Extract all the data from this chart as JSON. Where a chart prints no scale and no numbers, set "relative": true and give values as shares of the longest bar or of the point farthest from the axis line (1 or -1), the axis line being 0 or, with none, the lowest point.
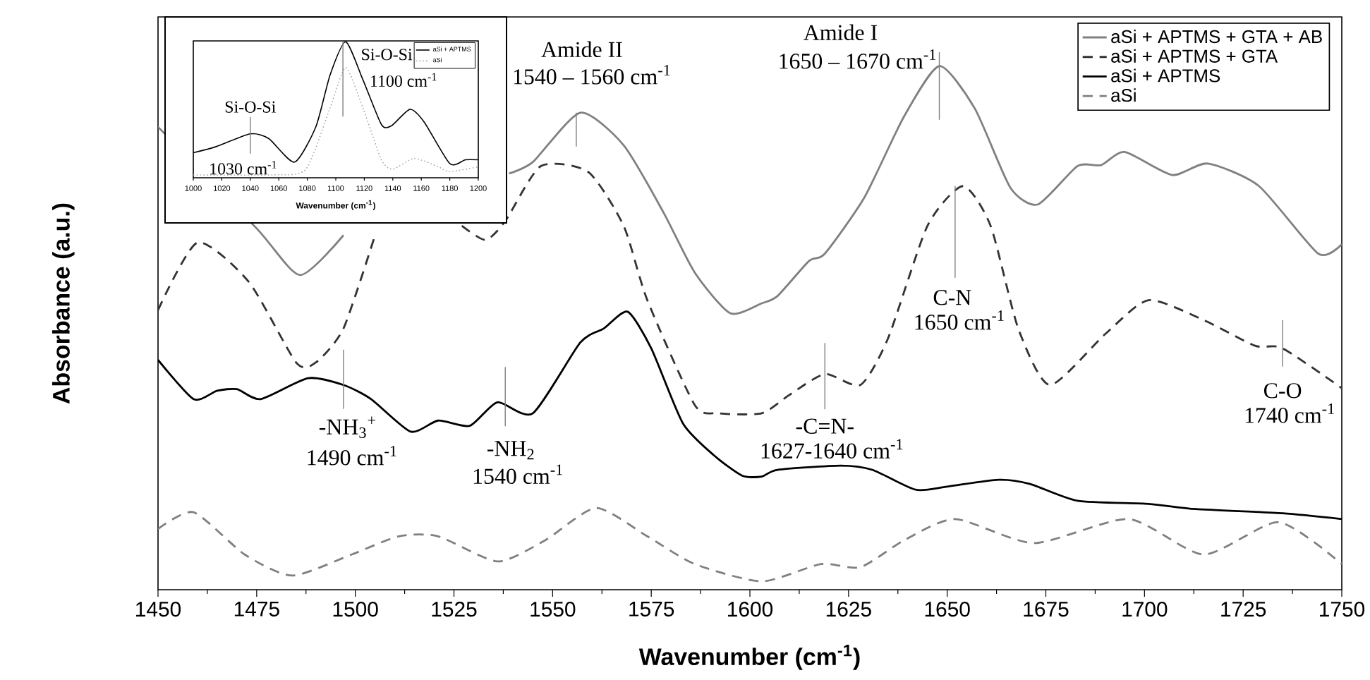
{
  "chart_data": [
    {
      "type": "line",
      "xlabel": "Wavenumber (cm$^{-1}$)",
      "ylabel": "Absorbance (a.u.)",
      "relative": true,
      "xlim": [
        1450,
        1750
      ],
      "xticks": [
        1450,
        1475,
        1500,
        1525,
        1550,
        1575,
        1600,
        1625,
        1650,
        1675,
        1700,
        1725,
        1750
      ],
      "legend": "top right",
      "series": [
        {
          "name": "aSi + APTMS + GTA + AB",
          "color": "#808080",
          "line_style": "solid",
          "x": [
            1450,
            1475,
            1486,
            1497,
            1520,
            1539,
            1545,
            1557,
            1568,
            1578,
            1586,
            1595,
            1603,
            1607,
            1615,
            1619,
            1629,
            1639,
            1648,
            1657,
            1666,
            1673,
            1683,
            1689,
            1695,
            1707,
            1716,
            1729,
            1744,
            1750
          ],
          "values": [
            0.884,
            0.69,
            0.601,
            0.677,
            null,
            0.795,
            0.817,
            0.911,
            0.849,
            0.722,
            0.606,
            0.528,
            0.547,
            0.561,
            0.628,
            0.642,
            0.749,
            0.903,
            1.0,
            0.919,
            0.768,
            0.736,
            0.809,
            0.811,
            0.836,
            0.792,
            0.814,
            0.771,
            0.642,
            0.66
          ]
        },
        {
          "name": "aSi + APTMS + GTA",
          "color": "#333333",
          "line_style": "dashed",
          "x": [
            1450,
            1460,
            1473,
            1485,
            1490,
            1497,
            1505,
            1516,
            1527,
            1533,
            1538,
            1547,
            1559,
            1568,
            1574,
            1586,
            1592,
            1603,
            1610,
            1619,
            1628,
            1635,
            1645,
            1654,
            1661,
            1668,
            1676,
            1690,
            1701,
            1715,
            1728,
            1735,
            1750
          ],
          "values": [
            0.534,
            0.663,
            0.588,
            0.434,
            0.434,
            0.499,
            0.677,
            null,
            0.695,
            0.668,
            0.704,
            0.809,
            0.798,
            0.695,
            0.553,
            0.353,
            0.337,
            0.337,
            0.372,
            0.412,
            0.391,
            0.48,
            0.695,
            0.771,
            0.695,
            0.499,
            0.391,
            0.488,
            0.553,
            0.515,
            0.466,
            0.461,
            0.385
          ]
        },
        {
          "name": "aSi + APTMS",
          "color": "#000000",
          "line_style": "solid",
          "x": [
            1450,
            1459,
            1465,
            1470,
            1476,
            1488,
            1497,
            1504,
            1514,
            1521,
            1529,
            1536,
            1545,
            1557,
            1563,
            1569,
            1575,
            1583,
            1591,
            1598,
            1603,
            1607,
            1623,
            1631,
            1642,
            1650,
            1663,
            1671,
            1683,
            1701,
            1713,
            1735,
            1750
          ],
          "values": [
            0.439,
            0.364,
            0.38,
            0.383,
            0.364,
            0.404,
            0.391,
            0.364,
            0.302,
            0.323,
            0.313,
            0.358,
            0.337,
            0.472,
            0.499,
            0.531,
            0.461,
            0.318,
            0.256,
            0.218,
            0.216,
            0.229,
            0.237,
            0.229,
            0.191,
            0.197,
            0.21,
            0.202,
            0.17,
            0.164,
            0.154,
            0.146,
            0.135
          ]
        },
        {
          "name": "aSi",
          "color": "#808080",
          "line_style": "dashed",
          "x": [
            1450,
            1459,
            1472,
            1484,
            1499,
            1511,
            1521,
            1536,
            1548,
            1561,
            1574,
            1586,
            1603,
            1618,
            1628,
            1639,
            1652,
            1672,
            1696,
            1715,
            1734,
            1750
          ],
          "values": [
            0.116,
            0.148,
            0.067,
            0.027,
            0.067,
            0.102,
            0.102,
            0.054,
            0.094,
            0.156,
            0.102,
            0.049,
            0.016,
            0.049,
            0.043,
            0.094,
            0.135,
            0.089,
            0.135,
            0.067,
            0.129,
            0.049
          ]
        }
      ],
      "annotations": [
        {
          "text": "Amide II",
          "x": 1556,
          "y": 0.911
        },
        {
          "text": "1540 – 1560 cm$^{-1}$",
          "x": 1556,
          "y": 0.911
        },
        "Amide I",
        {
          "text": "1650 – 1670 cm$^{-1}$",
          "x": 1648,
          "y": 1.0
        },
        {
          "text": "C-N",
          "x": 1652,
          "y": 0.771
        },
        "1650 cm$^{-1}$",
        {
          "text": "-C=N-",
          "x": 1619,
          "y": 0.412
        },
        {
          "text": "1627-1640 cm$^{-1}$",
          "x": 1619,
          "y": 0.412
        },
        {
          "text": "C-O",
          "x": 1735,
          "y": 0.461
        },
        {
          "text": "1740 cm$^{-1}$",
          "x": 1735,
          "y": 0.461
        },
        {
          "text": "-NH$_{3}$$^{+}$",
          "x": 1497,
          "y": 0.391
        },
        {
          "text": "1490 cm$^{-1}$",
          "x": 1497,
          "y": 0.391
        },
        {
          "text": "-NH$_{2}$",
          "x": 1538,
          "y": 0.358
        },
        {
          "text": "1540 cm$^{-1}$",
          "x": 1538,
          "y": 0.358
        }
      ]
    },
    {
      "type": "line",
      "xlabel": "Wavenumber (cm$^{-1}$)",
      "relative": true,
      "xlim": [
        1000,
        1200
      ],
      "xticks": [
        1000,
        1020,
        1040,
        1060,
        1080,
        1100,
        1120,
        1140,
        1160,
        1180,
        1200
      ],
      "legend": "top right",
      "series": [
        {
          "name": "aSi + APTMS",
          "color": "#000000",
          "line_style": "solid",
          "x": [
            1000,
            1016,
            1040,
            1053,
            1071,
            1086,
            1096,
            1107,
            1119,
            1132,
            1139,
            1152,
            1162,
            1180,
            1191,
            1200
          ],
          "values": [
            0.184,
            0.229,
            0.323,
            0.288,
            0.115,
            0.375,
            0.757,
            1.0,
            0.722,
            0.392,
            0.382,
            0.503,
            0.41,
            0.104,
            0.132,
            0.132
          ]
        },
        {
          "name": "aSi",
          "color": "#aaaaaa",
          "line_style": "dotted",
          "x": [
            1000,
            1056,
            1079,
            1096,
            1107,
            1119,
            1132,
            1140,
            1155,
            1172,
            1180,
            1200
          ],
          "values": [
            0.021,
            0.021,
            0.063,
            0.514,
            0.809,
            0.514,
            0.132,
            0.063,
            0.142,
            0.08,
            0.045,
            0.08
          ]
        }
      ],
      "annotations": [
        {
          "text": "Si-O-Si",
          "x": 1040,
          "y": 0.323
        },
        {
          "text": "1030 cm$^{-1}$",
          "x": 1040,
          "y": 0.323
        },
        {
          "text": "Si-O-Si",
          "x": 1105,
          "y": 1.0
        },
        {
          "text": "1100 cm$^{-1}$",
          "x": 1105,
          "y": 1.0
        }
      ]
    }
  ]
}
